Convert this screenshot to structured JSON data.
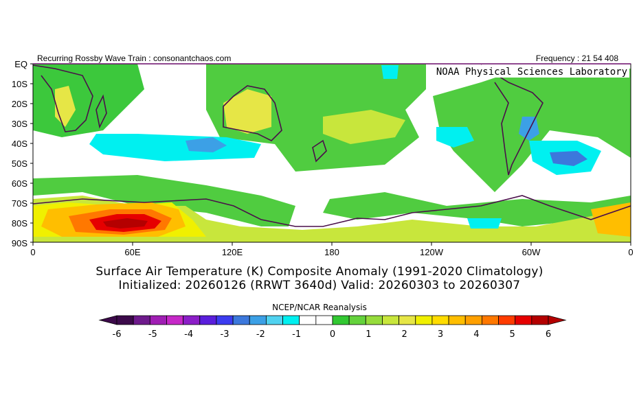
{
  "header": {
    "left": "Recurring Rossby Wave Train : consonantchaos.com",
    "right": "Frequency : 21 54 408",
    "credit": "NOAA Physical Sciences Laboratory"
  },
  "map": {
    "region": "Southern Hemisphere, EQ to 90S, 0 to 360E",
    "lat_labels": [
      "EQ",
      "10S",
      "20S",
      "30S",
      "40S",
      "50S",
      "60S",
      "70S",
      "80S",
      "90S"
    ],
    "lon_labels": [
      "0",
      "60E",
      "120E",
      "180",
      "120W",
      "60W",
      "0"
    ]
  },
  "titles": {
    "line1": "Surface Air Temperature (K) Composite Anomaly (1991-2020 Climatology)",
    "line2": "Initialized: 20260126 (RRWT 3640d) Valid: 20260303 to 20260307"
  },
  "colorbar": {
    "title": "NCEP/NCAR Reanalysis",
    "labels": [
      "-6",
      "-5",
      "-4",
      "-3",
      "-2",
      "-1",
      "0",
      "1",
      "2",
      "3",
      "4",
      "5",
      "6"
    ],
    "colors": [
      "#3c0a4a",
      "#6e1a8c",
      "#a01eb4",
      "#c628c8",
      "#8c1ec8",
      "#5a1edc",
      "#3c3cf0",
      "#3c78dc",
      "#3ca0e6",
      "#50d2f0",
      "#00f0f0",
      "#ffffff",
      "#ffffff",
      "#32c832",
      "#64d23c",
      "#96dc3c",
      "#c8e63c",
      "#e6e646",
      "#f0f000",
      "#ffdc00",
      "#ffbe00",
      "#ffa000",
      "#ff7800",
      "#ff3c00",
      "#e60000",
      "#b40000"
    ]
  }
}
